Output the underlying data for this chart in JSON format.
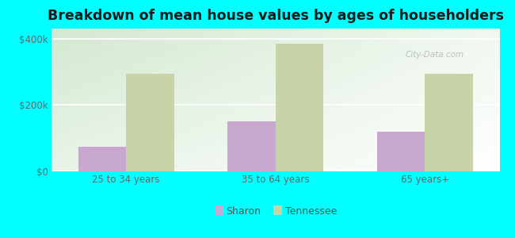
{
  "title": "Breakdown of mean house values by ages of householders",
  "categories": [
    "25 to 34 years",
    "35 to 64 years",
    "65 years+"
  ],
  "sharon_values": [
    75000,
    150000,
    120000
  ],
  "tennessee_values": [
    295000,
    385000,
    295000
  ],
  "sharon_color": "#c8a8d0",
  "tennessee_color": "#c8d4a8",
  "background_color": "#00ffff",
  "ylabel_ticks": [
    0,
    200000,
    400000
  ],
  "ylabel_labels": [
    "$0",
    "$200k",
    "$400k"
  ],
  "ylim": [
    0,
    430000
  ],
  "bar_width": 0.32,
  "legend_labels": [
    "Sharon",
    "Tennessee"
  ],
  "title_fontsize": 12.5,
  "tick_fontsize": 8.5,
  "legend_fontsize": 9,
  "watermark": "City-Data.com"
}
